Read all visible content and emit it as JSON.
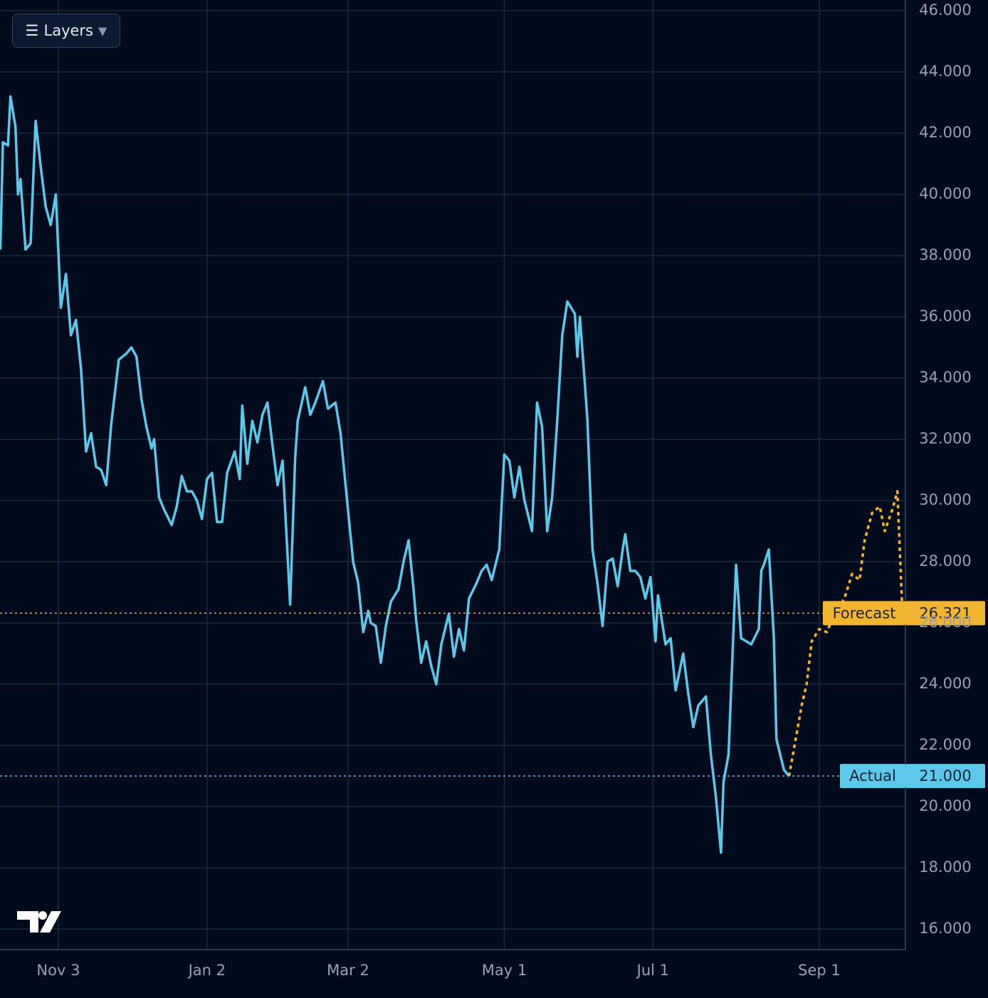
{
  "chart_data": {
    "type": "line",
    "series": [
      {
        "name": "Actual",
        "color": "#5cc8ea",
        "dashed": false,
        "x": [
          1,
          2,
          4,
          5,
          7,
          8,
          9,
          11,
          13,
          15,
          17,
          19,
          21,
          23,
          25,
          27,
          29,
          31,
          33,
          35,
          37,
          39,
          41,
          43,
          45,
          48,
          51,
          53,
          55,
          57,
          59,
          61,
          62,
          64,
          66,
          69,
          71,
          73,
          75,
          77,
          79,
          81,
          83,
          85,
          87,
          89,
          91,
          94,
          96,
          97,
          99,
          101,
          103,
          105,
          107,
          109,
          111,
          113,
          116,
          118,
          119,
          122,
          124,
          126,
          129,
          131,
          134,
          136,
          138,
          141,
          143,
          145,
          147,
          148,
          150,
          152,
          154,
          156,
          159,
          161,
          163,
          165,
          166,
          168,
          170,
          172,
          174,
          176,
          179,
          181,
          183,
          185,
          187,
          190,
          192,
          194,
          196,
          199,
          201,
          203,
          205,
          207,
          209,
          212,
          214,
          216,
          218,
          220,
          222,
          224,
          226,
          229,
          230,
          231,
          233,
          234,
          236,
          238,
          240,
          242,
          244,
          246,
          248,
          249,
          251,
          253,
          255,
          257,
          259,
          261,
          262,
          265,
          267,
          269,
          272,
          274,
          276,
          278,
          281,
          283,
          285,
          287,
          288,
          290,
          293,
          295,
          297,
          299,
          302,
          303,
          304,
          306,
          308,
          309,
          312,
          314
        ],
        "values": [
          38.2,
          41.7,
          41.6,
          43.2,
          42.2,
          40.0,
          40.5,
          38.2,
          38.4,
          42.4,
          40.9,
          39.6,
          39.0,
          40.0,
          36.3,
          37.4,
          35.4,
          35.9,
          34.3,
          31.6,
          32.2,
          31.1,
          31.0,
          30.5,
          32.5,
          34.6,
          34.8,
          35.0,
          34.7,
          33.3,
          32.4,
          31.7,
          32.0,
          30.1,
          29.7,
          29.2,
          29.8,
          30.8,
          30.3,
          30.3,
          30.0,
          29.4,
          30.7,
          30.9,
          29.3,
          29.3,
          30.9,
          31.6,
          30.7,
          33.1,
          31.2,
          32.6,
          31.9,
          32.8,
          33.2,
          31.8,
          30.5,
          31.3,
          26.6,
          31.4,
          32.6,
          33.7,
          32.8,
          33.2,
          33.9,
          33.0,
          33.2,
          32.2,
          30.5,
          28.0,
          27.3,
          25.7,
          26.4,
          26.0,
          25.9,
          24.7,
          25.9,
          26.7,
          27.1,
          28.0,
          28.7,
          27.1,
          26.1,
          24.7,
          25.4,
          24.6,
          24.0,
          25.3,
          26.3,
          24.9,
          25.8,
          25.1,
          26.8,
          27.3,
          27.7,
          27.9,
          27.4,
          28.4,
          31.5,
          31.3,
          30.1,
          31.1,
          30.0,
          29.0,
          33.2,
          32.4,
          29.0,
          30.1,
          32.6,
          35.4,
          36.5,
          36.1,
          34.7,
          36.0,
          33.8,
          32.6,
          28.4,
          27.3,
          25.9,
          28.0,
          28.1,
          27.2,
          28.4,
          28.9,
          27.7,
          27.7,
          27.5,
          26.8,
          27.5,
          25.4,
          26.9,
          25.3,
          25.5,
          23.8,
          25.0,
          23.7,
          22.6,
          23.3,
          23.6,
          21.7,
          20.3,
          18.5,
          20.8,
          21.7,
          27.9,
          25.5,
          25.4,
          25.3,
          25.8,
          27.7,
          27.9,
          28.4,
          25.5,
          22.2,
          21.2,
          21.0
        ],
        "last": {
          "value": 21,
          "label": "21.000"
        }
      },
      {
        "name": "Forecast",
        "color": "#f2b531",
        "dashed": true,
        "x": [
          314,
          319,
          321,
          323,
          326,
          329,
          332,
          336,
          339,
          342,
          344,
          347,
          350,
          352,
          355,
          357,
          359
        ],
        "values": [
          21.0,
          23.3,
          24.0,
          25.4,
          25.8,
          25.7,
          26.3,
          26.8,
          27.6,
          27.4,
          28.7,
          29.6,
          29.8,
          29.0,
          29.7,
          30.3,
          26.321
        ],
        "last": {
          "value": 26.321,
          "label": "26.321"
        }
      }
    ],
    "xlim": [
      0.85,
      360.2
    ],
    "xticks": [
      {
        "value": 24,
        "label": "Nov 3"
      },
      {
        "value": 83,
        "label": "Jan 2"
      },
      {
        "value": 139,
        "label": "Mar 2"
      },
      {
        "value": 201,
        "label": "May 1"
      },
      {
        "value": 260,
        "label": "Jul 1"
      },
      {
        "value": 326,
        "label": "Sep 1"
      }
    ],
    "ylim": [
      15.33,
      46.35
    ],
    "yticks": [
      {
        "value": 16,
        "label": "16.000"
      },
      {
        "value": 18,
        "label": "18.000"
      },
      {
        "value": 20,
        "label": "20.000"
      },
      {
        "value": 22,
        "label": "22.000"
      },
      {
        "value": 24,
        "label": "24.000"
      },
      {
        "value": 26,
        "label": "26.000"
      },
      {
        "value": 28,
        "label": "28.000"
      },
      {
        "value": 30,
        "label": "30.000"
      },
      {
        "value": 32,
        "label": "32.000"
      },
      {
        "value": 34,
        "label": "34.000"
      },
      {
        "value": 36,
        "label": "36.000"
      },
      {
        "value": 38,
        "label": "38.000"
      },
      {
        "value": 40,
        "label": "40.000"
      },
      {
        "value": 42,
        "label": "42.000"
      },
      {
        "value": 44,
        "label": "44.000"
      },
      {
        "value": 46,
        "label": "46.000"
      }
    ],
    "grid": true
  },
  "ui": {
    "layers_button": "Layers"
  }
}
